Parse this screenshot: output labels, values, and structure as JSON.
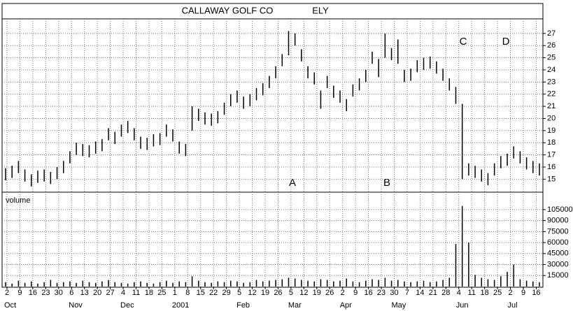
{
  "chart_data": {
    "type": "range-bar",
    "title": "CALLAWAY GOLF CO",
    "symbol": "ELY",
    "volume_label": "volume",
    "annotations": [
      "A",
      "B",
      "C",
      "D"
    ],
    "categories": [
      "2",
      "9",
      "16",
      "23",
      "30",
      "6",
      "13",
      "20",
      "27",
      "4",
      "11",
      "18",
      "25",
      "1",
      "8",
      "15",
      "22",
      "29",
      "5",
      "12",
      "19",
      "26",
      "5",
      "12",
      "19",
      "26",
      "2",
      "9",
      "16",
      "23",
      "30",
      "7",
      "14",
      "21",
      "28",
      "4",
      "11",
      "18",
      "25",
      "2",
      "9",
      "16"
    ],
    "months": [
      "Oct",
      null,
      null,
      null,
      null,
      "Nov",
      null,
      null,
      null,
      "Dec",
      null,
      null,
      null,
      "2001",
      null,
      null,
      null,
      null,
      "Feb",
      null,
      null,
      null,
      "Mar",
      null,
      null,
      null,
      "Apr",
      null,
      null,
      null,
      "May",
      null,
      null,
      null,
      null,
      "Jun",
      null,
      null,
      null,
      "Jul",
      null,
      null
    ],
    "high": [
      15.9,
      16.1,
      16.5,
      15.8,
      15.4,
      15.7,
      15.8,
      15.6,
      16.0,
      16.5,
      17.3,
      18.0,
      17.9,
      17.8,
      18.1,
      18.3,
      19.2,
      18.9,
      19.5,
      19.8,
      19.2,
      18.5,
      18.4,
      18.7,
      18.8,
      19.5,
      19.1,
      18.1,
      17.9,
      21.0,
      20.8,
      20.5,
      20.4,
      20.6,
      21.3,
      22.0,
      22.3,
      21.8,
      22.0,
      22.5,
      22.9,
      23.5,
      24.3,
      25.3,
      27.2,
      27.0,
      25.7,
      24.3,
      23.8,
      22.3,
      23.5,
      22.7,
      22.3,
      21.6,
      22.8,
      23.3,
      24.0,
      25.5,
      24.9,
      27.0,
      25.8,
      26.5,
      24.0,
      24.1,
      24.8,
      25.0,
      25.1,
      24.7,
      24.1,
      23.3,
      22.6,
      21.2,
      16.3,
      16.1,
      15.8,
      15.5,
      16.3,
      16.9,
      17.1,
      17.7,
      17.3,
      16.8,
      16.5,
      16.3
    ],
    "low": [
      14.9,
      15.1,
      15.5,
      14.8,
      14.4,
      14.7,
      14.8,
      14.6,
      15.0,
      15.5,
      16.3,
      17.0,
      16.9,
      16.8,
      17.1,
      17.3,
      18.2,
      17.9,
      18.5,
      18.8,
      18.2,
      17.5,
      17.4,
      17.7,
      17.8,
      18.5,
      18.1,
      17.1,
      16.9,
      19.0,
      19.8,
      19.5,
      19.4,
      19.6,
      20.3,
      21.0,
      21.3,
      20.8,
      21.0,
      21.5,
      21.9,
      22.5,
      23.3,
      24.3,
      25.2,
      26.0,
      24.7,
      23.3,
      22.8,
      20.8,
      22.5,
      21.7,
      21.3,
      20.6,
      21.8,
      22.3,
      23.0,
      24.5,
      23.4,
      25.0,
      24.8,
      24.5,
      23.0,
      23.1,
      23.8,
      24.0,
      24.1,
      23.7,
      23.1,
      22.3,
      21.2,
      15.0,
      15.3,
      15.1,
      14.8,
      14.5,
      15.3,
      15.9,
      16.1,
      16.7,
      16.3,
      15.8,
      15.5,
      15.3
    ],
    "volume": [
      6000,
      4000,
      8000,
      5000,
      7000,
      4000,
      6000,
      9000,
      5000,
      6000,
      7000,
      5000,
      8000,
      6000,
      5000,
      7000,
      9000,
      6000,
      5000,
      4000,
      6000,
      7000,
      5000,
      4000,
      6000,
      8000,
      5000,
      7000,
      6000,
      14000,
      8000,
      6000,
      5000,
      7000,
      6000,
      8000,
      7000,
      5000,
      6000,
      9000,
      7000,
      8000,
      9000,
      10000,
      12000,
      11000,
      9000,
      8000,
      7000,
      10000,
      9000,
      7000,
      8000,
      11000,
      7000,
      6000,
      8000,
      10000,
      9000,
      12000,
      8000,
      9000,
      7000,
      6000,
      7000,
      8000,
      6000,
      7000,
      9000,
      12000,
      58000,
      110000,
      60000,
      16000,
      12000,
      10000,
      9000,
      14000,
      20000,
      30000,
      10000,
      8000,
      7000,
      6000
    ],
    "color": "#000000",
    "ylim": [
      14.1,
      28.2
    ],
    "yticks": [
      15,
      16,
      17,
      18,
      19,
      20,
      21,
      22,
      23,
      24,
      25,
      26,
      27
    ],
    "y2lim": [
      0,
      124000
    ],
    "y2ticks": [
      15000,
      30000,
      45000,
      60000,
      75000,
      90000,
      105000
    ],
    "grid": true
  }
}
